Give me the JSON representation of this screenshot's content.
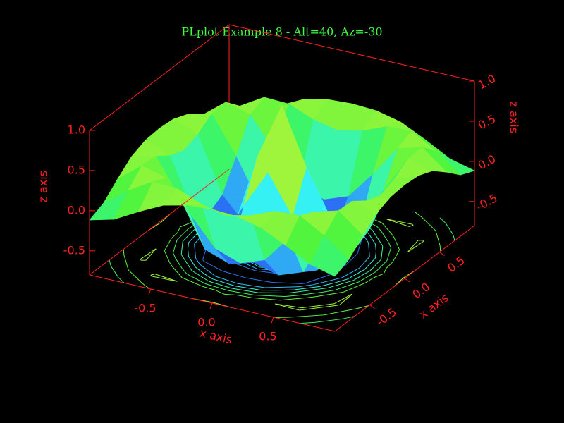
{
  "chart_data": {
    "type": "surface3d",
    "title": "PLplot Example 8 - Alt=40, Az=-30",
    "xlabel": "x axis",
    "ylabel": "x axis",
    "zlabel": "z axis",
    "x": [
      -1,
      -0.8,
      -0.6,
      -0.4,
      -0.2,
      0,
      0.2,
      0.4,
      0.6,
      0.8,
      1
    ],
    "y": [
      -1,
      -0.8,
      -0.6,
      -0.4,
      -0.2,
      0,
      0.2,
      0.4,
      0.6,
      0.8,
      1
    ],
    "z": [
      [
        -0.116,
        -0.037,
        0.129,
        0.278,
        0.351,
        0.368,
        0.351,
        0.278,
        0.129,
        -0.037,
        -0.116
      ],
      [
        -0.037,
        0.189,
        0.368,
        0.355,
        0.23,
        0.163,
        0.23,
        0.355,
        0.368,
        0.189,
        -0.037
      ],
      [
        0.129,
        0.368,
        0.283,
        -0.108,
        -0.454,
        -0.564,
        -0.454,
        -0.108,
        0.283,
        0.368,
        0.129
      ],
      [
        0.278,
        0.355,
        -0.108,
        -0.665,
        -0.775,
        -0.689,
        -0.775,
        -0.665,
        -0.108,
        0.355,
        0.278
      ],
      [
        0.351,
        0.23,
        -0.454,
        -0.775,
        -0.189,
        0.297,
        -0.189,
        -0.775,
        -0.454,
        0.23,
        0.351
      ],
      [
        0.368,
        0.163,
        -0.564,
        -0.689,
        0.297,
        1,
        0.297,
        -0.689,
        -0.564,
        0.163,
        0.368
      ],
      [
        0.351,
        0.23,
        -0.454,
        -0.775,
        -0.189,
        0.297,
        -0.189,
        -0.775,
        -0.454,
        0.23,
        0.351
      ],
      [
        0.278,
        0.355,
        -0.108,
        -0.665,
        -0.775,
        -0.689,
        -0.775,
        -0.665,
        -0.108,
        0.355,
        0.278
      ],
      [
        0.129,
        0.368,
        0.283,
        -0.108,
        -0.454,
        -0.564,
        -0.454,
        -0.108,
        0.283,
        0.368,
        0.129
      ],
      [
        -0.037,
        0.189,
        0.368,
        0.355,
        0.23,
        0.163,
        0.23,
        0.355,
        0.368,
        0.189,
        -0.037
      ],
      [
        -0.116,
        -0.037,
        0.129,
        0.278,
        0.351,
        0.368,
        0.351,
        0.278,
        0.129,
        -0.037,
        -0.116
      ]
    ],
    "xlim": [
      -1,
      1
    ],
    "ylim": [
      -1,
      1
    ],
    "zlim": [
      -0.8,
      1
    ],
    "xticks": [
      -0.5,
      {
        "value": 0,
        "label": "0.0"
      },
      0.5
    ],
    "yticks": [
      -0.5,
      {
        "value": 0,
        "label": "0.0"
      },
      0.5
    ],
    "zticks": [
      -0.5,
      {
        "value": 0,
        "label": "0.0"
      },
      0.5,
      {
        "value": 1,
        "label": "1.0"
      }
    ],
    "base_contours": true,
    "contour_levels": 10,
    "title_color": "#40ff40",
    "axis_color": "#ff2020"
  }
}
